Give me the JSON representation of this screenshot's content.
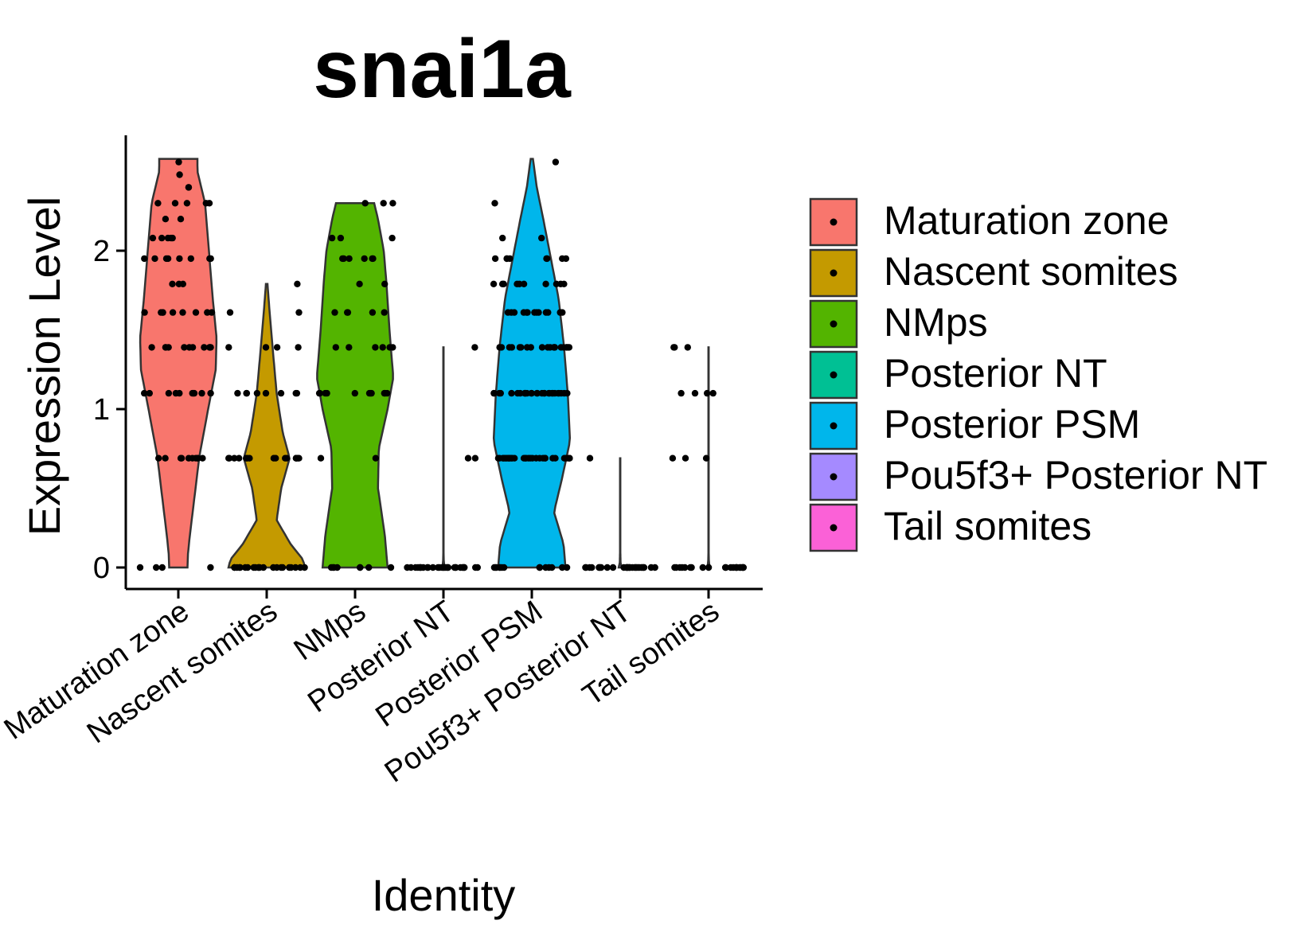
{
  "chart_data": {
    "type": "violin",
    "title": "snai1a",
    "xlabel": "Identity",
    "ylabel": "Expression Level",
    "ylim": [
      -0.13,
      2.75
    ],
    "yticks": [
      0,
      1,
      2
    ],
    "legend_position": "right",
    "categories": [
      "Maturation zone",
      "Nascent somites",
      "NMps",
      "Posterior NT",
      "Posterior PSM",
      "Pou5f3+ Posterior NT",
      "Tail somites"
    ],
    "colors": [
      "#F8766D",
      "#C49A00",
      "#53B400",
      "#00C094",
      "#00B6EB",
      "#A58AFF",
      "#FB61D7"
    ],
    "series": [
      {
        "name": "Maturation zone",
        "y_max": 2.58,
        "y_min": 0,
        "density": [
          [
            0,
            0.24
          ],
          [
            0.08,
            0.25
          ],
          [
            0.2,
            0.3
          ],
          [
            0.4,
            0.4
          ],
          [
            0.7,
            0.55
          ],
          [
            1.0,
            0.78
          ],
          [
            1.25,
            0.98
          ],
          [
            1.45,
            1.0
          ],
          [
            1.7,
            0.9
          ],
          [
            2.0,
            0.8
          ],
          [
            2.3,
            0.7
          ],
          [
            2.5,
            0.5
          ],
          [
            2.58,
            0.5
          ]
        ],
        "levels": [
          {
            "y": 0,
            "n": 4
          },
          {
            "y": 0.69,
            "n": 10
          },
          {
            "y": 1.1,
            "n": 10
          },
          {
            "y": 1.39,
            "n": 11
          },
          {
            "y": 1.61,
            "n": 9
          },
          {
            "y": 1.79,
            "n": 3
          },
          {
            "y": 1.95,
            "n": 8
          },
          {
            "y": 2.08,
            "n": 5
          },
          {
            "y": 2.2,
            "n": 2
          },
          {
            "y": 2.3,
            "n": 5
          },
          {
            "y": 2.4,
            "n": 2
          },
          {
            "y": 2.48,
            "n": 1
          },
          {
            "y": 2.56,
            "n": 1
          }
        ]
      },
      {
        "name": "Nascent somites",
        "y_max": 1.79,
        "y_min": 0,
        "density": [
          [
            0,
            1.0
          ],
          [
            0.05,
            0.95
          ],
          [
            0.15,
            0.62
          ],
          [
            0.3,
            0.26
          ],
          [
            0.5,
            0.38
          ],
          [
            0.69,
            0.6
          ],
          [
            0.85,
            0.42
          ],
          [
            1.1,
            0.26
          ],
          [
            1.4,
            0.15
          ],
          [
            1.6,
            0.08
          ],
          [
            1.79,
            0.02
          ]
        ],
        "levels": [
          {
            "y": 0,
            "n": 22
          },
          {
            "y": 0.69,
            "n": 16
          },
          {
            "y": 1.1,
            "n": 8
          },
          {
            "y": 1.39,
            "n": 4
          },
          {
            "y": 1.61,
            "n": 2
          },
          {
            "y": 1.79,
            "n": 1
          }
        ]
      },
      {
        "name": "NMps",
        "y_max": 2.3,
        "y_min": 0,
        "density": [
          [
            0,
            0.85
          ],
          [
            0.2,
            0.78
          ],
          [
            0.5,
            0.6
          ],
          [
            0.75,
            0.62
          ],
          [
            1.0,
            0.85
          ],
          [
            1.2,
            1.0
          ],
          [
            1.5,
            0.9
          ],
          [
            1.8,
            0.82
          ],
          [
            2.0,
            0.75
          ],
          [
            2.2,
            0.6
          ],
          [
            2.3,
            0.5
          ]
        ],
        "levels": [
          {
            "y": 0,
            "n": 8
          },
          {
            "y": 0.69,
            "n": 2
          },
          {
            "y": 1.1,
            "n": 11
          },
          {
            "y": 1.39,
            "n": 6
          },
          {
            "y": 1.61,
            "n": 5
          },
          {
            "y": 1.79,
            "n": 2
          },
          {
            "y": 1.95,
            "n": 6
          },
          {
            "y": 2.08,
            "n": 3
          },
          {
            "y": 2.3,
            "n": 3
          }
        ]
      },
      {
        "name": "Posterior NT",
        "y_max": 1.39,
        "y_min": 0,
        "density": [
          [
            0,
            0.04
          ],
          [
            0.03,
            0.01
          ],
          [
            0.1,
            0.004
          ],
          [
            1.39,
            0.004
          ]
        ],
        "levels": [
          {
            "y": 0,
            "n": 30
          },
          {
            "y": 0.69,
            "n": 2
          },
          {
            "y": 1.39,
            "n": 1
          }
        ]
      },
      {
        "name": "Posterior PSM",
        "y_max": 2.58,
        "y_min": 0,
        "density": [
          [
            0,
            0.88
          ],
          [
            0.15,
            0.83
          ],
          [
            0.35,
            0.58
          ],
          [
            0.55,
            0.78
          ],
          [
            0.8,
            1.0
          ],
          [
            1.1,
            0.94
          ],
          [
            1.4,
            0.84
          ],
          [
            1.7,
            0.7
          ],
          [
            1.95,
            0.5
          ],
          [
            2.2,
            0.3
          ],
          [
            2.4,
            0.13
          ],
          [
            2.58,
            0.03
          ]
        ],
        "levels": [
          {
            "y": 0,
            "n": 14
          },
          {
            "y": 0.69,
            "n": 30
          },
          {
            "y": 1.1,
            "n": 28
          },
          {
            "y": 1.39,
            "n": 20
          },
          {
            "y": 1.61,
            "n": 14
          },
          {
            "y": 1.79,
            "n": 10
          },
          {
            "y": 1.95,
            "n": 8
          },
          {
            "y": 2.08,
            "n": 2
          },
          {
            "y": 2.3,
            "n": 1
          },
          {
            "y": 2.56,
            "n": 1
          }
        ]
      },
      {
        "name": "Pou5f3+ Posterior NT",
        "y_max": 0.69,
        "y_min": 0,
        "density": [
          [
            0,
            0.04
          ],
          [
            0.03,
            0.01
          ],
          [
            0.1,
            0.004
          ],
          [
            0.69,
            0.004
          ]
        ],
        "levels": [
          {
            "y": 0,
            "n": 30
          },
          {
            "y": 0.69,
            "n": 1
          }
        ]
      },
      {
        "name": "Tail somites",
        "y_max": 1.39,
        "y_min": 0,
        "density": [
          [
            0,
            0.04
          ],
          [
            0.03,
            0.01
          ],
          [
            0.1,
            0.004
          ],
          [
            1.39,
            0.004
          ]
        ],
        "levels": [
          {
            "y": 0,
            "n": 22
          },
          {
            "y": 0.69,
            "n": 3
          },
          {
            "y": 1.1,
            "n": 4
          },
          {
            "y": 1.39,
            "n": 3
          }
        ]
      }
    ]
  }
}
